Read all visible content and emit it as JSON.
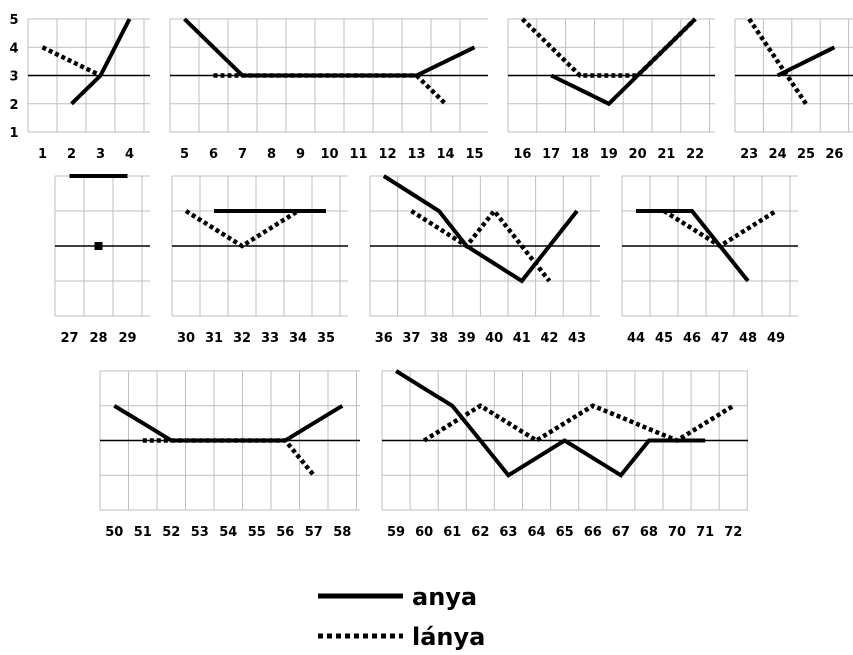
{
  "chart_data": [
    {
      "type": "line",
      "x": [
        "1",
        "2",
        "3",
        "4"
      ],
      "series": [
        {
          "name": "anya",
          "values": [
            null,
            2,
            3,
            5
          ]
        },
        {
          "name": "lánya",
          "values": [
            4,
            3.5,
            3,
            null
          ]
        }
      ],
      "yticks": [
        "1",
        "2",
        "3",
        "4",
        "5"
      ],
      "ylim": [
        1,
        5
      ],
      "grid": true
    },
    {
      "type": "line",
      "x": [
        "5",
        "6",
        "7",
        "8",
        "9",
        "10",
        "11",
        "12",
        "13",
        "14",
        "15"
      ],
      "series": [
        {
          "name": "anya",
          "values": [
            5,
            4,
            3,
            3,
            3,
            3,
            3,
            3,
            3,
            3.5,
            4
          ]
        },
        {
          "name": "lánya",
          "values": [
            null,
            3,
            3,
            3,
            3,
            3,
            3,
            3,
            3,
            2,
            null
          ]
        }
      ],
      "ylim": [
        1,
        5
      ],
      "grid": true
    },
    {
      "type": "line",
      "x": [
        "16",
        "17",
        "18",
        "19",
        "20",
        "21",
        "22"
      ],
      "series": [
        {
          "name": "anya",
          "values": [
            null,
            3,
            2.5,
            2,
            3,
            4,
            5
          ]
        },
        {
          "name": "lánya",
          "values": [
            5,
            4,
            3,
            3,
            3,
            4,
            5
          ]
        }
      ],
      "ylim": [
        1,
        5
      ],
      "grid": true
    },
    {
      "type": "line",
      "x": [
        "23",
        "24",
        "25",
        "26"
      ],
      "series": [
        {
          "name": "anya",
          "values": [
            null,
            3,
            3.5,
            4
          ]
        },
        {
          "name": "lánya",
          "values": [
            5,
            3.5,
            2,
            null
          ]
        }
      ],
      "ylim": [
        1,
        5
      ],
      "grid": true
    },
    {
      "type": "line",
      "x": [
        "27",
        "28",
        "29"
      ],
      "series": [
        {
          "name": "anya",
          "values": [
            5,
            5,
            5
          ]
        },
        {
          "name": "lánya",
          "values": [
            null,
            3,
            null
          ]
        }
      ],
      "ylim": [
        1,
        5
      ],
      "grid": true
    },
    {
      "type": "line",
      "x": [
        "30",
        "31",
        "32",
        "33",
        "34",
        "35"
      ],
      "series": [
        {
          "name": "anya",
          "values": [
            null,
            4,
            4,
            4,
            4,
            4
          ]
        },
        {
          "name": "lánya",
          "values": [
            4,
            3.5,
            3,
            3.5,
            4,
            null
          ]
        }
      ],
      "ylim": [
        1,
        5
      ],
      "grid": true
    },
    {
      "type": "line",
      "x": [
        "36",
        "37",
        "38",
        "39",
        "40",
        "41",
        "42",
        "43"
      ],
      "series": [
        {
          "name": "anya",
          "values": [
            5,
            4.5,
            4,
            3,
            2.5,
            2,
            3,
            4
          ]
        },
        {
          "name": "lánya",
          "values": [
            null,
            4,
            3.5,
            3,
            4,
            3,
            2,
            null
          ]
        }
      ],
      "ylim": [
        1,
        5
      ],
      "grid": true
    },
    {
      "type": "line",
      "x": [
        "44",
        "45",
        "46",
        "47",
        "48",
        "49"
      ],
      "series": [
        {
          "name": "anya",
          "values": [
            4,
            4,
            4,
            3,
            2,
            null
          ]
        },
        {
          "name": "lánya",
          "values": [
            null,
            4,
            3.5,
            3,
            3.5,
            4
          ]
        }
      ],
      "ylim": [
        1,
        5
      ],
      "grid": true
    },
    {
      "type": "line",
      "x": [
        "50",
        "51",
        "52",
        "53",
        "54",
        "55",
        "56",
        "57",
        "58"
      ],
      "series": [
        {
          "name": "anya",
          "values": [
            4,
            3.5,
            3,
            3,
            3,
            3,
            3,
            3.5,
            4
          ]
        },
        {
          "name": "lánya",
          "values": [
            null,
            3,
            3,
            3,
            3,
            3,
            3,
            2,
            null
          ]
        }
      ],
      "ylim": [
        1,
        5
      ],
      "grid": true
    },
    {
      "type": "line",
      "x": [
        "59",
        "60",
        "61",
        "62",
        "63",
        "64",
        "65",
        "66",
        "67",
        "68",
        "70",
        "71",
        "72"
      ],
      "series": [
        {
          "name": "anya",
          "values": [
            5,
            4.5,
            4,
            3,
            2,
            2.5,
            3,
            2.5,
            2,
            3,
            3,
            3,
            null
          ]
        },
        {
          "name": "lánya",
          "values": [
            null,
            3,
            3.5,
            4,
            3.5,
            3,
            3.5,
            4,
            3.67,
            3.33,
            3,
            3.5,
            4
          ]
        }
      ],
      "ylim": [
        1,
        5
      ],
      "grid": true
    }
  ],
  "legend": {
    "placement": "bottom-center",
    "items": [
      {
        "label": "anya",
        "style": "solid"
      },
      {
        "label": "lánya",
        "style": "dotted"
      }
    ]
  },
  "colors": {
    "line": "#000000",
    "grid": "#bfbfbf",
    "axis": "#000000"
  }
}
